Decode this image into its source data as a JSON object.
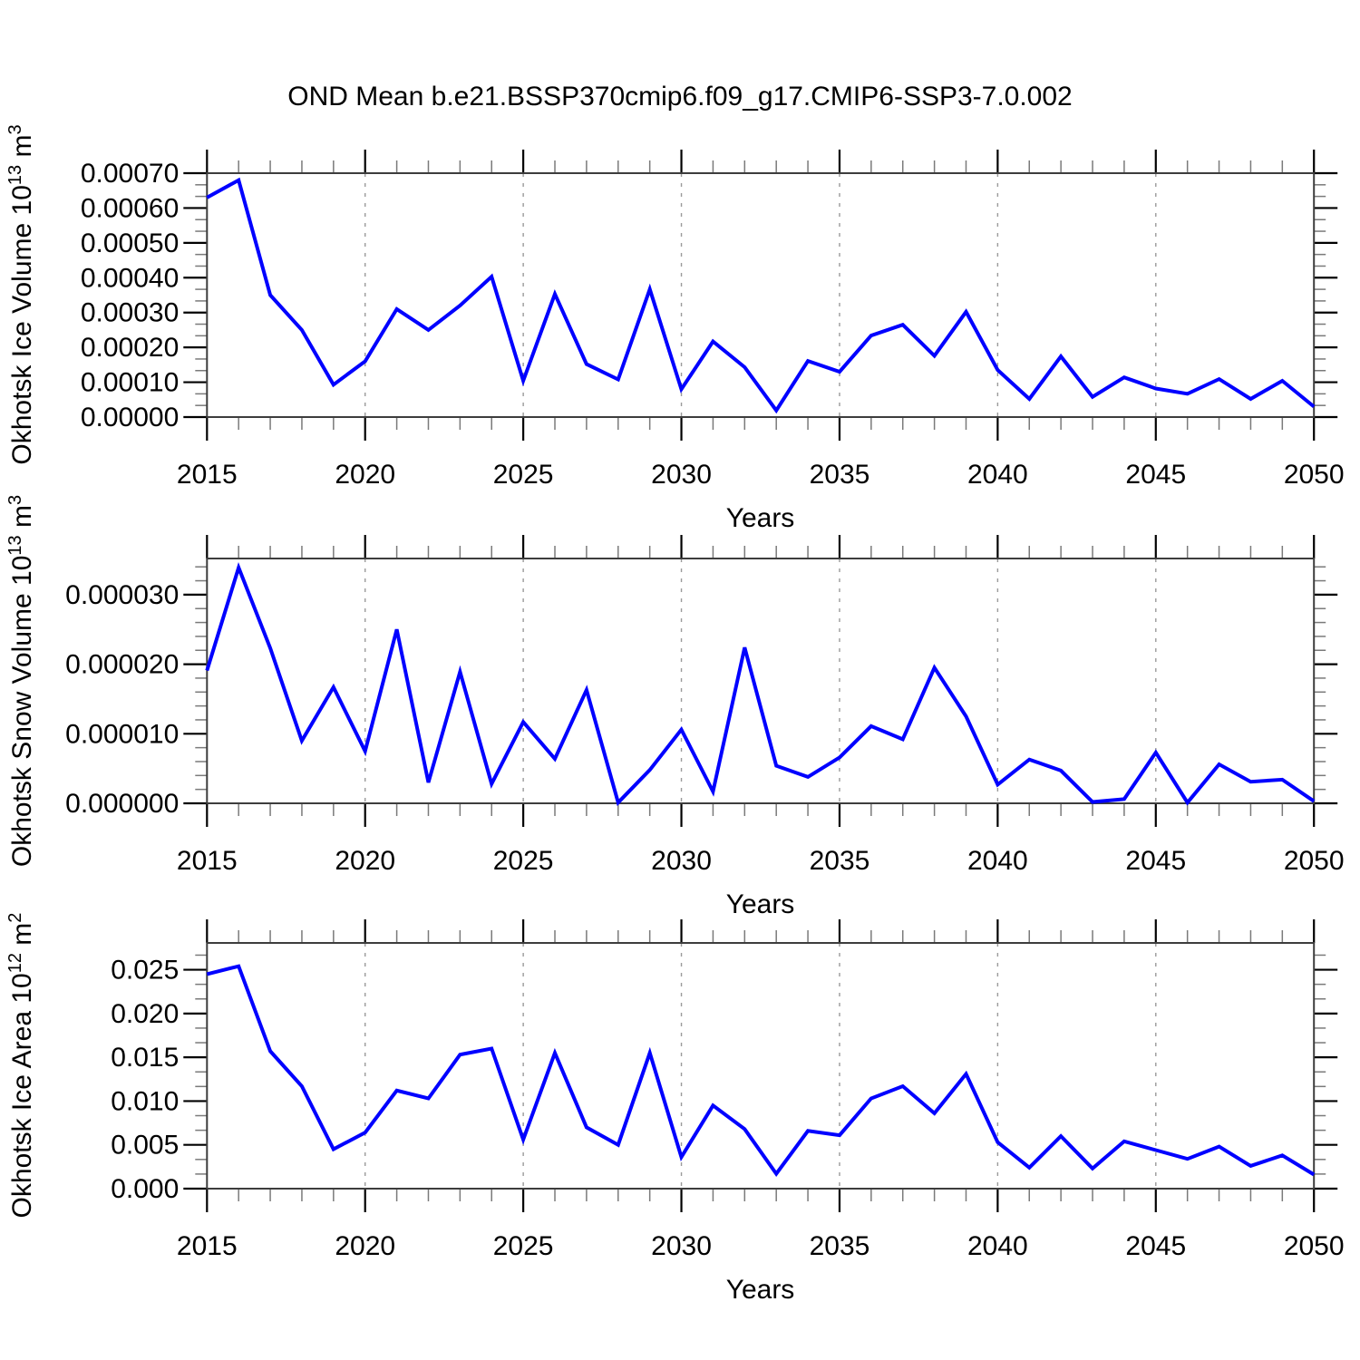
{
  "title": "OND Mean b.e21.BSSP370cmip6.f09_g17.CMIP6-SSP3-7.0.002",
  "background": "#ffffff",
  "line_color": "#0000ff",
  "chart_data": [
    {
      "type": "line",
      "title": "",
      "ylabel": "Okhotsk Ice Volume ",
      "ylabel_base": "10",
      "ylabel_exp": "13",
      "ylabel_unit": " m",
      "ylabel_unit_exp": "3",
      "xlabel": "Years",
      "legend": null,
      "grid": "vertical-dashed",
      "x": [
        2015,
        2016,
        2017,
        2018,
        2019,
        2020,
        2021,
        2022,
        2023,
        2024,
        2025,
        2026,
        2027,
        2028,
        2029,
        2030,
        2031,
        2032,
        2033,
        2034,
        2035,
        2036,
        2037,
        2038,
        2039,
        2040,
        2041,
        2042,
        2043,
        2044,
        2045,
        2046,
        2047,
        2048,
        2049,
        2050
      ],
      "values": [
        0.00063,
        0.00068,
        0.00035,
        0.00025,
        9.3e-05,
        0.00016,
        0.00031,
        0.00025,
        0.00032,
        0.000403,
        0.000104,
        0.000353,
        0.000152,
        0.000108,
        0.000367,
        8e-05,
        0.000217,
        0.000143,
        1.9e-05,
        0.000161,
        0.00013,
        0.000234,
        0.000265,
        0.000176,
        0.000302,
        0.000135,
        5.2e-05,
        0.000174,
        5.8e-05,
        0.000114,
        8.2e-05,
        6.7e-05,
        0.000109,
        5.2e-05,
        0.000104,
        3e-05
      ],
      "ylim": [
        0,
        0.0007
      ],
      "yticks": [
        0,
        0.0001,
        0.0002,
        0.0003,
        0.0004,
        0.0005,
        0.0006,
        0.0007
      ],
      "ytick_labels": [
        "0.00000",
        "0.00010",
        "0.00020",
        "0.00030",
        "0.00040",
        "0.00050",
        "0.00060",
        "0.00070"
      ],
      "y_minor_step": 3.33333e-05,
      "xticks": [
        2015,
        2020,
        2025,
        2030,
        2035,
        2040,
        2045,
        2050
      ],
      "xtick_labels": [
        "2015",
        "2020",
        "2025",
        "2030",
        "2035",
        "2040",
        "2045",
        "2050"
      ],
      "grid_x": [
        2020,
        2025,
        2030,
        2035,
        2040,
        2045
      ]
    },
    {
      "type": "line",
      "title": "",
      "ylabel": "Okhotsk Snow Volume ",
      "ylabel_base": "10",
      "ylabel_exp": "13",
      "ylabel_unit": " m",
      "ylabel_unit_exp": "3",
      "xlabel": "Years",
      "legend": null,
      "grid": "vertical-dashed",
      "x": [
        2015,
        2016,
        2017,
        2018,
        2019,
        2020,
        2021,
        2022,
        2023,
        2024,
        2025,
        2026,
        2027,
        2028,
        2029,
        2030,
        2031,
        2032,
        2033,
        2034,
        2035,
        2036,
        2037,
        2038,
        2039,
        2040,
        2041,
        2042,
        2043,
        2044,
        2045,
        2046,
        2047,
        2048,
        2049,
        2050
      ],
      "values": [
        1.91e-05,
        3.39e-05,
        2.23e-05,
        9e-06,
        1.67e-05,
        7.5e-06,
        2.5e-05,
        3e-06,
        1.89e-05,
        2.8e-06,
        1.17e-05,
        6.4e-06,
        1.63e-05,
        1e-07,
        4.8e-06,
        1.06e-05,
        1.7e-06,
        2.24e-05,
        5.4e-06,
        3.8e-06,
        6.6e-06,
        1.11e-05,
        9.2e-06,
        1.95e-05,
        1.25e-05,
        2.7e-06,
        6.3e-06,
        4.7e-06,
        2e-07,
        6e-07,
        7.3e-06,
        1e-07,
        5.6e-06,
        3.1e-06,
        3.4e-06,
        3e-07
      ],
      "ylim": [
        0,
        3.52e-05
      ],
      "yticks": [
        0,
        1e-05,
        2e-05,
        3e-05
      ],
      "ytick_labels": [
        "0.000000",
        "0.000010",
        "0.000020",
        "0.000030"
      ],
      "y_minor_step": 2e-06,
      "xticks": [
        2015,
        2020,
        2025,
        2030,
        2035,
        2040,
        2045,
        2050
      ],
      "xtick_labels": [
        "2015",
        "2020",
        "2025",
        "2030",
        "2035",
        "2040",
        "2045",
        "2050"
      ],
      "grid_x": [
        2020,
        2025,
        2030,
        2035,
        2040,
        2045
      ]
    },
    {
      "type": "line",
      "title": "",
      "ylabel": "Okhotsk Ice Area ",
      "ylabel_base": "10",
      "ylabel_exp": "12",
      "ylabel_unit": " m",
      "ylabel_unit_exp": "2",
      "xlabel": "Years",
      "legend": null,
      "grid": "vertical-dashed",
      "x": [
        2015,
        2016,
        2017,
        2018,
        2019,
        2020,
        2021,
        2022,
        2023,
        2024,
        2025,
        2026,
        2027,
        2028,
        2029,
        2030,
        2031,
        2032,
        2033,
        2034,
        2035,
        2036,
        2037,
        2038,
        2039,
        2040,
        2041,
        2042,
        2043,
        2044,
        2045,
        2046,
        2047,
        2048,
        2049,
        2050
      ],
      "values": [
        0.0245,
        0.0254,
        0.0157,
        0.0117,
        0.0045,
        0.0064,
        0.0112,
        0.0103,
        0.0153,
        0.016,
        0.0056,
        0.0155,
        0.007,
        0.005,
        0.0155,
        0.0036,
        0.0095,
        0.0068,
        0.0017,
        0.0066,
        0.0061,
        0.0103,
        0.0117,
        0.0086,
        0.0131,
        0.0053,
        0.0024,
        0.006,
        0.0023,
        0.0054,
        0.0044,
        0.0034,
        0.0048,
        0.0026,
        0.0038,
        0.0016
      ],
      "ylim": [
        0,
        0.02806
      ],
      "yticks": [
        0,
        0.005,
        0.01,
        0.015,
        0.02,
        0.025
      ],
      "ytick_labels": [
        "0.000",
        "0.005",
        "0.010",
        "0.015",
        "0.020",
        "0.025"
      ],
      "y_minor_step": 0.00166667,
      "xticks": [
        2015,
        2020,
        2025,
        2030,
        2035,
        2040,
        2045,
        2050
      ],
      "xtick_labels": [
        "2015",
        "2020",
        "2025",
        "2030",
        "2035",
        "2040",
        "2045",
        "2050"
      ],
      "grid_x": [
        2020,
        2025,
        2030,
        2035,
        2040,
        2045
      ]
    }
  ]
}
